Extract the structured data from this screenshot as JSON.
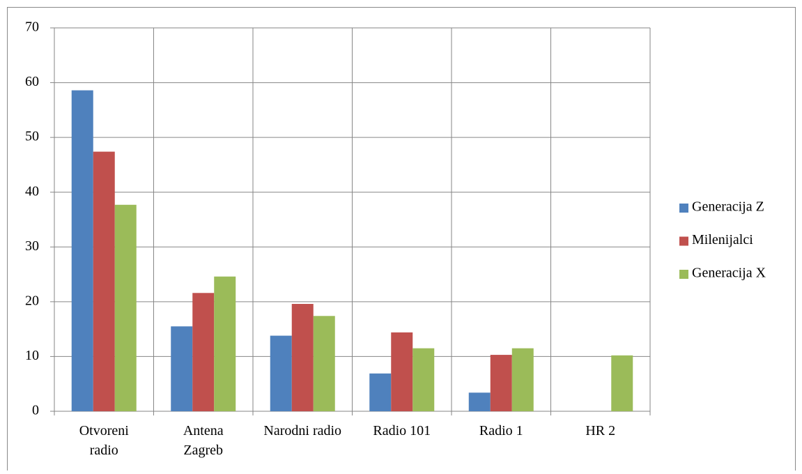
{
  "chart_data": {
    "type": "bar",
    "categories": [
      "Otvoreni radio",
      "Antena Zagreb",
      "Narodni radio",
      "Radio 101",
      "Radio 1",
      "HR 2"
    ],
    "series": [
      {
        "name": "Generacija Z",
        "color": "#4f81bd",
        "values": [
          58.6,
          15.5,
          13.8,
          6.9,
          3.4,
          0
        ]
      },
      {
        "name": "Milenijalci",
        "color": "#c0504d",
        "values": [
          47.4,
          21.6,
          19.6,
          14.4,
          10.3,
          0
        ]
      },
      {
        "name": "Generacija X",
        "color": "#9bbb59",
        "values": [
          37.7,
          24.6,
          17.4,
          11.5,
          11.5,
          10.2
        ]
      }
    ],
    "ylim": [
      0,
      70
    ],
    "yticks": [
      0,
      10,
      20,
      30,
      40,
      50,
      60,
      70
    ],
    "grid": true,
    "legend": "right"
  }
}
